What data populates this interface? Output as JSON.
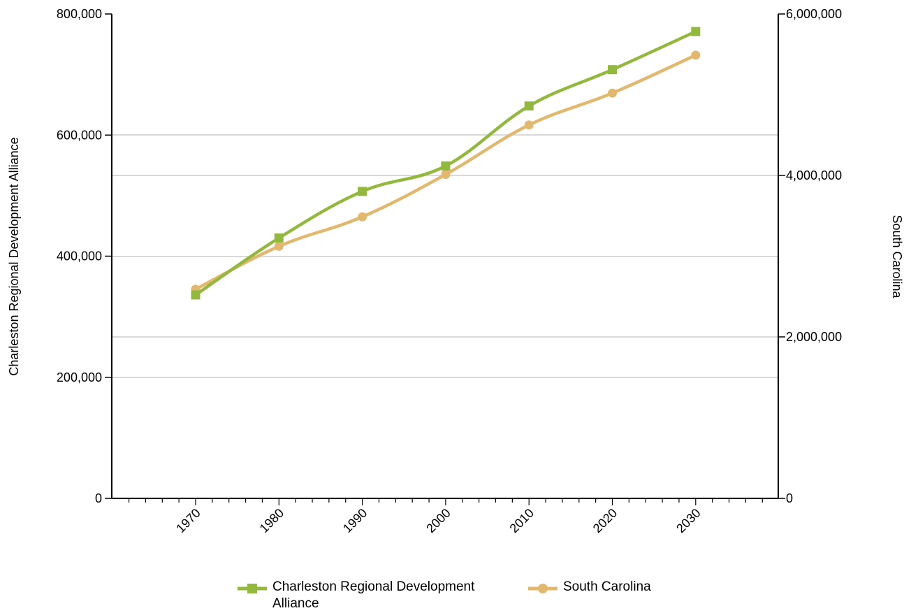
{
  "chart_data": {
    "type": "line",
    "title": "",
    "x": [
      "1970",
      "1980",
      "1990",
      "2000",
      "2010",
      "2020",
      "2030"
    ],
    "y_left": {
      "label": "Charleston Regional Development Alliance",
      "ylim": [
        0,
        800000
      ],
      "ticks": [
        "0",
        "200,000",
        "400,000",
        "600,000",
        "800,000"
      ]
    },
    "y_right": {
      "label": "South Carolina",
      "ylim": [
        0,
        6000000
      ],
      "ticks": [
        "0",
        "2,000,000",
        "4,000,000",
        "6,000,000"
      ]
    },
    "grid": true,
    "legend_position": "bottom",
    "series": [
      {
        "name": "Charleston Regional Development Alliance",
        "axis": "left",
        "color": "#93b83e",
        "marker": "square",
        "values": [
          336000,
          430000,
          507000,
          549000,
          648000,
          708000,
          771000
        ]
      },
      {
        "name": "South Carolina",
        "axis": "right",
        "color": "#e2b86e",
        "marker": "circle",
        "values": [
          2590000,
          3122000,
          3487000,
          4012000,
          4625000,
          5020000,
          5490000
        ]
      }
    ]
  }
}
